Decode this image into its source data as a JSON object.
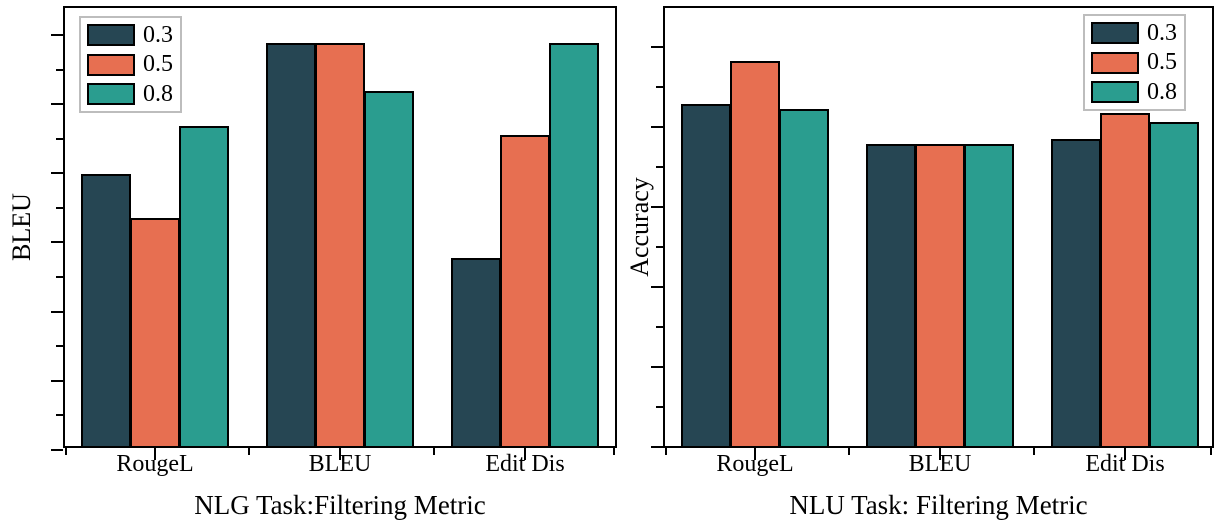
{
  "figure": {
    "background": "#ffffff",
    "text_color": "#000000",
    "bar_outline_color": "#000000",
    "legend_border_color": "#bdbdbd"
  },
  "chart_data": [
    {
      "id": "nlg",
      "type": "bar",
      "title": "NLG Task:Filtering Metric",
      "ylabel": "BLEU",
      "categories": [
        "RougeL",
        "BLEU",
        "Edit Dis"
      ],
      "series": [
        {
          "name": "0.3",
          "color": "#264653",
          "values": [
            0.62,
            0.92,
            0.43
          ]
        },
        {
          "name": "0.5",
          "color": "#E76F51",
          "values": [
            0.52,
            0.92,
            0.71
          ]
        },
        {
          "name": "0.8",
          "color": "#2A9D8F",
          "values": [
            0.73,
            0.81,
            0.92
          ]
        }
      ],
      "ylim": [
        0,
        1
      ],
      "y_tick_labels_shown": false,
      "grid": false,
      "legend_position": "top-left"
    },
    {
      "id": "nlu",
      "type": "bar",
      "title": "NLU Task: Filtering Metric",
      "ylabel": "Accuracy",
      "categories": [
        "RougeL",
        "BLEU",
        "Edit Dis"
      ],
      "series": [
        {
          "name": "0.3",
          "color": "#264653",
          "values": [
            0.78,
            0.69,
            0.7
          ]
        },
        {
          "name": "0.5",
          "color": "#E76F51",
          "values": [
            0.88,
            0.69,
            0.76
          ]
        },
        {
          "name": "0.8",
          "color": "#2A9D8F",
          "values": [
            0.77,
            0.69,
            0.74
          ]
        }
      ],
      "ylim": [
        0,
        1
      ],
      "y_tick_labels_shown": false,
      "grid": false,
      "legend_position": "top-right"
    }
  ]
}
